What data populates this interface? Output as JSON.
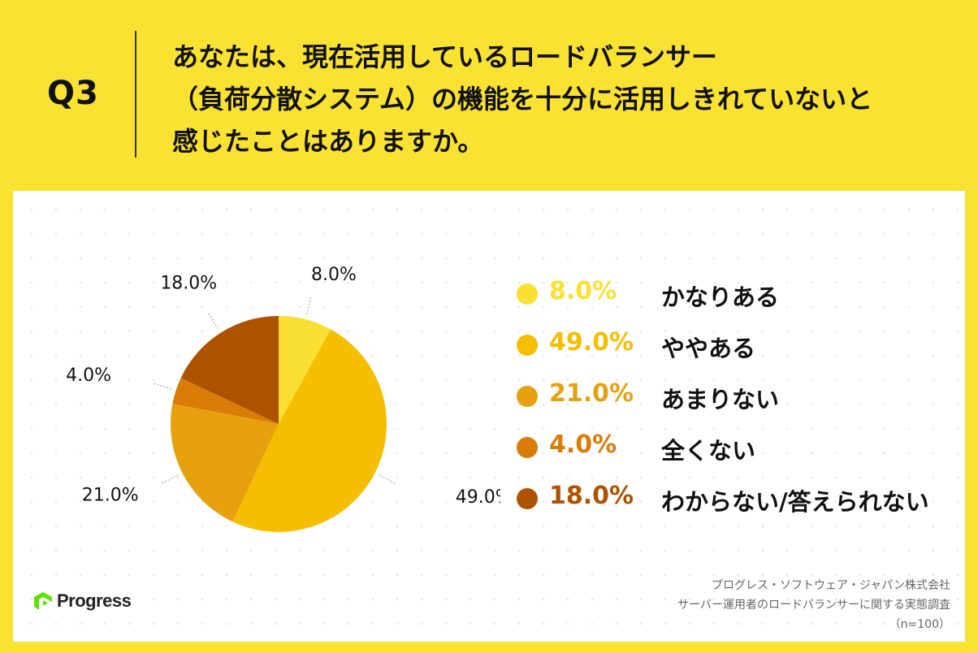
{
  "question": {
    "label": "Q3",
    "lines": [
      "あなたは、現在活用しているロードバランサー",
      "（負荷分散システム）の機能を十分に活用しきれていないと",
      "感じたことはありますか。"
    ]
  },
  "chart_data": {
    "type": "pie",
    "unit": "%",
    "start_angle": "12 o'clock",
    "direction": "clockwise",
    "slices": [
      {
        "label": "かなりある",
        "value": 8.0,
        "display": "8.0%",
        "color": "#F9E033"
      },
      {
        "label": "ややある",
        "value": 49.0,
        "display": "49.0%",
        "color": "#F6BE00"
      },
      {
        "label": "あまりない",
        "value": 21.0,
        "display": "21.0%",
        "color": "#E7A10E"
      },
      {
        "label": "全くない",
        "value": 4.0,
        "display": "4.0%",
        "color": "#D97C08"
      },
      {
        "label": "わからない/答えられない",
        "value": 18.0,
        "display": "18.0%",
        "color": "#AD5300"
      }
    ],
    "legend_position": "right"
  },
  "logo": {
    "name": "progress-logo",
    "text": "Progress"
  },
  "source": {
    "company": "プログレス・ソフトウェア・ジャパン株式会社",
    "survey": "サーバー運用者のロードバランサーに関する実態調査",
    "sample": "（n=100）"
  }
}
